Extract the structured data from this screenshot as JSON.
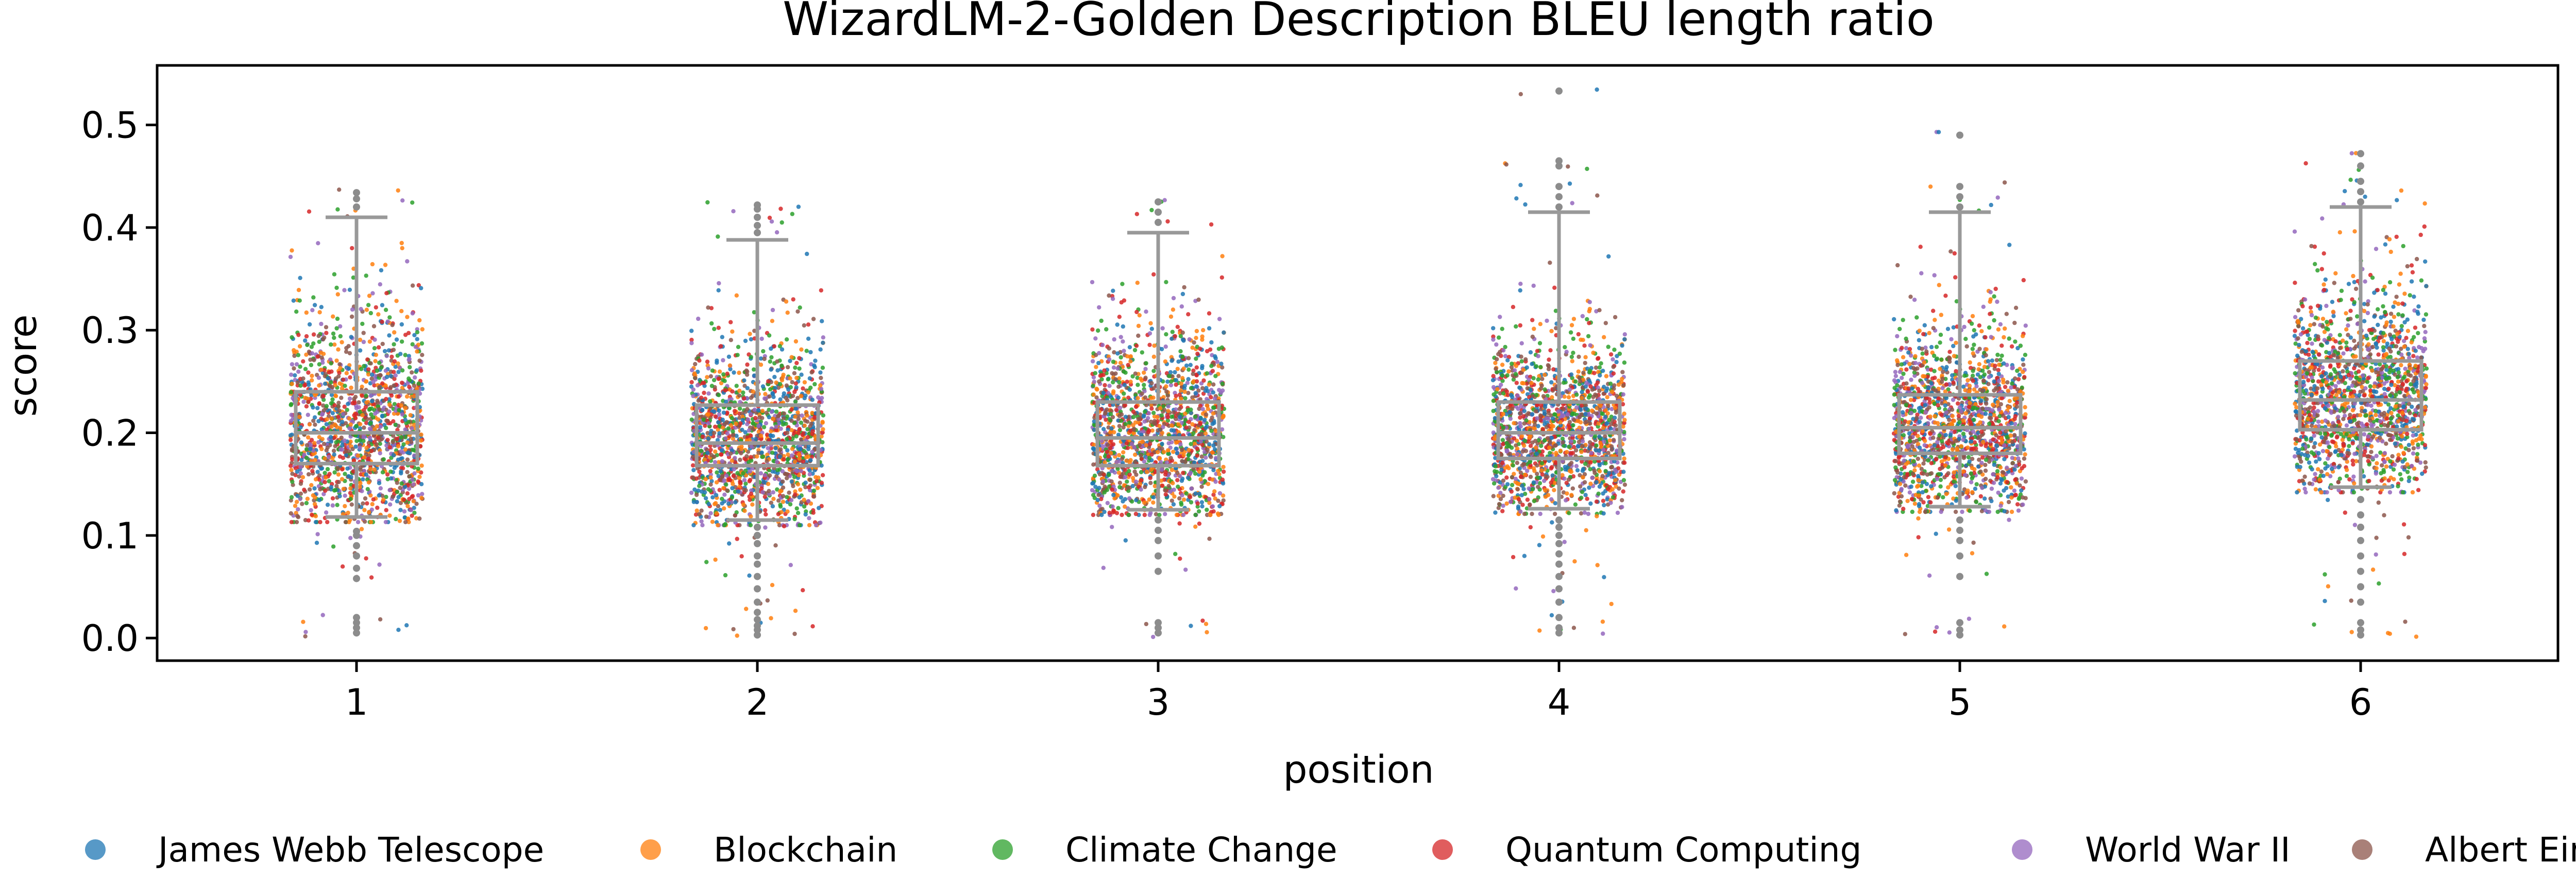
{
  "chart_data": {
    "type": "box",
    "title": "WizardLM-2-Golden Description BLEU length ratio",
    "xlabel": "position",
    "ylabel": "score",
    "ylim": [
      -0.022,
      0.558
    ],
    "yticks": [
      0.0,
      0.1,
      0.2,
      0.3,
      0.4,
      0.5
    ],
    "ytick_labels": [
      "0.0",
      "0.1",
      "0.2",
      "0.3",
      "0.4",
      "0.5"
    ],
    "categories": [
      "1",
      "2",
      "3",
      "4",
      "5",
      "6"
    ],
    "boxes": [
      {
        "position": "1",
        "whisker_low": 0.118,
        "q1": 0.17,
        "median": 0.2,
        "q3": 0.24,
        "whisker_high": 0.41,
        "outliers": [
          0.005,
          0.01,
          0.015,
          0.02,
          0.058,
          0.068,
          0.08,
          0.09,
          0.1,
          0.104,
          0.42,
          0.428,
          0.434
        ]
      },
      {
        "position": "2",
        "whisker_low": 0.115,
        "q1": 0.168,
        "median": 0.19,
        "q3": 0.227,
        "whisker_high": 0.388,
        "outliers": [
          0.003,
          0.008,
          0.012,
          0.018,
          0.025,
          0.035,
          0.048,
          0.06,
          0.072,
          0.08,
          0.092,
          0.1,
          0.108,
          0.395,
          0.402,
          0.41,
          0.418,
          0.422
        ]
      },
      {
        "position": "3",
        "whisker_low": 0.125,
        "q1": 0.168,
        "median": 0.195,
        "q3": 0.23,
        "whisker_high": 0.395,
        "outliers": [
          0.005,
          0.01,
          0.015,
          0.065,
          0.08,
          0.095,
          0.105,
          0.115,
          0.405,
          0.415,
          0.425
        ]
      },
      {
        "position": "4",
        "whisker_low": 0.126,
        "q1": 0.175,
        "median": 0.2,
        "q3": 0.23,
        "whisker_high": 0.415,
        "outliers": [
          0.005,
          0.01,
          0.02,
          0.035,
          0.048,
          0.06,
          0.072,
          0.082,
          0.092,
          0.1,
          0.108,
          0.115,
          0.42,
          0.43,
          0.44,
          0.46,
          0.465,
          0.533
        ]
      },
      {
        "position": "5",
        "whisker_low": 0.128,
        "q1": 0.18,
        "median": 0.205,
        "q3": 0.237,
        "whisker_high": 0.415,
        "outliers": [
          0.003,
          0.008,
          0.015,
          0.06,
          0.08,
          0.095,
          0.105,
          0.115,
          0.42,
          0.43,
          0.44,
          0.49
        ]
      },
      {
        "position": "6",
        "whisker_low": 0.147,
        "q1": 0.203,
        "median": 0.232,
        "q3": 0.27,
        "whisker_high": 0.42,
        "outliers": [
          0.003,
          0.008,
          0.015,
          0.035,
          0.05,
          0.065,
          0.08,
          0.095,
          0.108,
          0.12,
          0.135,
          0.425,
          0.435,
          0.445,
          0.46,
          0.472
        ]
      }
    ],
    "scatter_series": [
      {
        "name": "James Webb Telescope",
        "color": "#1f77b4"
      },
      {
        "name": "Blockchain",
        "color": "#ff7f0e"
      },
      {
        "name": "Climate Change",
        "color": "#2ca02c"
      },
      {
        "name": "Quantum Computing",
        "color": "#d62728"
      },
      {
        "name": "World War II",
        "color": "#9467bd"
      },
      {
        "name": "Albert Einstein",
        "color": "#8c564b"
      }
    ],
    "box_color": "#999999",
    "outlier_color": "#8c8c8c",
    "legend_position": "bottom",
    "grid": false
  }
}
